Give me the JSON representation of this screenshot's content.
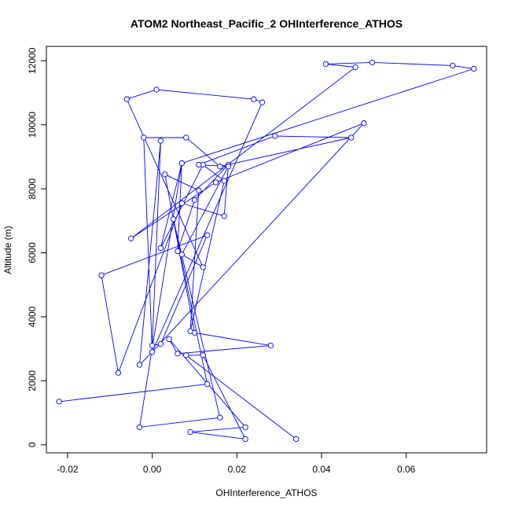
{
  "chart_data": {
    "type": "line",
    "title": "ATOM2 Northeast_Pacific_2 OHInterference_ATHOS",
    "xlabel": "OHInterference_ATHOS",
    "ylabel": "Altitude (m)",
    "xlim": [
      -0.025,
      0.079
    ],
    "ylim": [
      -250,
      12450
    ],
    "x_ticks": [
      -0.02,
      0.0,
      0.02,
      0.04,
      0.06
    ],
    "x_tick_labels": [
      "-0.02",
      "0.00",
      "0.02",
      "0.04",
      "0.06"
    ],
    "y_ticks": [
      0,
      2000,
      4000,
      6000,
      8000,
      10000,
      12000
    ],
    "y_tick_labels": [
      "0",
      "2000",
      "4000",
      "6000",
      "8000",
      "10000",
      "12000"
    ],
    "grid": false,
    "line_color": "#0000ff",
    "marker": "open-circle",
    "series": [
      {
        "x": [
          0.034,
          0.008,
          0.012,
          0.022,
          0.009,
          0.022,
          0.004,
          0.006,
          0.028,
          0.01,
          0.003,
          0.011,
          0.009,
          0.017,
          0.012,
          0.002,
          0.007,
          0.006,
          0.01,
          0.018,
          0.017,
          0.007,
          -0.008,
          -0.012,
          0.013,
          0.002,
          0.0,
          0.002,
          -0.003,
          0.0,
          -0.002,
          0.008,
          0.016,
          0.047,
          0.029,
          0.011,
          0.018,
          0.007,
          0.012,
          -0.006,
          0.001,
          0.024,
          0.026,
          0.0,
          0.05,
          0.015,
          -0.005,
          0.048,
          0.041,
          0.052,
          0.071,
          0.076,
          0.007,
          -0.003,
          0.016,
          0.005,
          0.013,
          -0.022
        ],
        "y": [
          180,
          2800,
          2800,
          180,
          400,
          550,
          3300,
          2850,
          3100,
          3500,
          8450,
          7950,
          3550,
          8250,
          8750,
          6150,
          8800,
          6050,
          7650,
          8750,
          7150,
          7550,
          2250,
          5300,
          6550,
          3150,
          3100,
          9500,
          2500,
          2900,
          9600,
          9600,
          8700,
          9600,
          9650,
          8750,
          8700,
          5950,
          5550,
          10800,
          11100,
          10800,
          10700,
          2900,
          10050,
          8200,
          6450,
          11800,
          11900,
          11950,
          11850,
          11750,
          8800,
          550,
          850,
          7050,
          1900,
          1350
        ]
      }
    ]
  }
}
